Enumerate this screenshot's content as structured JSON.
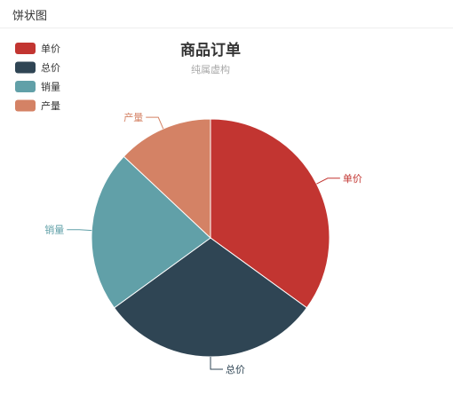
{
  "panel": {
    "title": "饼状图"
  },
  "chart_data": {
    "type": "pie",
    "title": "商品订单",
    "subtitle": "纯属虚构",
    "legend_position": "top-left",
    "categories": [
      "单价",
      "总价",
      "销量",
      "产量"
    ],
    "values": [
      35,
      30,
      22,
      13
    ],
    "colors": [
      "#c23531",
      "#2f4554",
      "#61a0a8",
      "#d48265"
    ]
  }
}
